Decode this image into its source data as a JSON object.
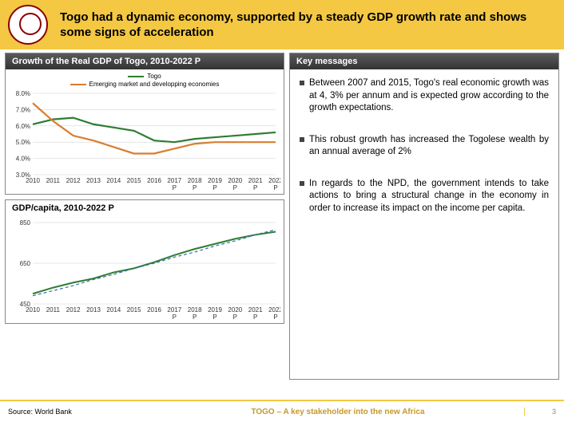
{
  "header": {
    "title": "Togo had a dynamic economy, supported by a steady GDP growth rate and shows some signs of acceleration"
  },
  "chart1": {
    "title": "Growth of the Real GDP of Togo, 2010-2022 P",
    "type": "line",
    "legend": [
      {
        "label": "Togo",
        "color": "#2e7d32"
      },
      {
        "label": "Emerging market and developping economies",
        "color": "#d97d2e"
      }
    ],
    "x_labels": [
      "2010",
      "2011",
      "2012",
      "2013",
      "2014",
      "2015",
      "2016",
      "2017 P",
      "2018 P",
      "2019 P",
      "2020 P",
      "2021 P",
      "2022 P"
    ],
    "y_labels": [
      "3.0%",
      "4.0%",
      "5.0%",
      "6.0%",
      "7.0%",
      "8.0%"
    ],
    "ylim": [
      3.0,
      8.0
    ],
    "series": [
      {
        "name": "Togo",
        "color": "#2e7d32",
        "width": 2.2,
        "values": [
          6.1,
          6.4,
          6.5,
          6.1,
          5.9,
          5.7,
          5.1,
          5.0,
          5.2,
          5.3,
          5.4,
          5.5,
          5.6
        ]
      },
      {
        "name": "EM",
        "color": "#d97d2e",
        "width": 2.2,
        "values": [
          7.4,
          6.3,
          5.4,
          5.1,
          4.7,
          4.3,
          4.3,
          4.6,
          4.9,
          5.0,
          5.0,
          5.0,
          5.0
        ]
      }
    ],
    "grid_color": "#cfcfcf",
    "label_fontsize": 8
  },
  "chart2": {
    "title": "GDP/capita, 2010-2022 P",
    "type": "line",
    "x_labels": [
      "2010",
      "2011",
      "2012",
      "2013",
      "2014",
      "2015",
      "2016",
      "2017 P",
      "2018 P",
      "2019 P",
      "2020 P",
      "2021 P",
      "2022 P"
    ],
    "y_labels": [
      "450",
      "650",
      "850"
    ],
    "ylim": [
      450,
      850
    ],
    "series": [
      {
        "name": "gdp",
        "color": "#2e7d32",
        "width": 2,
        "dash": "",
        "values": [
          500,
          530,
          555,
          575,
          605,
          625,
          655,
          690,
          720,
          745,
          770,
          790,
          805
        ]
      },
      {
        "name": "trend",
        "color": "#3a6ea5",
        "width": 1.2,
        "dash": "4,3",
        "values": [
          490,
          515,
          540,
          570,
          595,
          625,
          650,
          680,
          705,
          735,
          760,
          790,
          815
        ]
      }
    ],
    "grid_color": "#cfcfcf",
    "label_fontsize": 8
  },
  "key": {
    "title": "Key messages",
    "items": [
      "Between 2007 and 2015, Togo's real economic growth was at 4, 3% per annum and is expected grow according to the growth expectations.",
      "This robust growth has increased the Togolese wealth by an annual average of 2%",
      "In regards to the NPD, the government intends to take actions to bring a structural change in the economy in order to increase its impact on the income per capita."
    ]
  },
  "footer": {
    "source": "Source: World Bank",
    "tagline": "TOGO – A key stakeholder into the new Africa",
    "page": "3"
  }
}
